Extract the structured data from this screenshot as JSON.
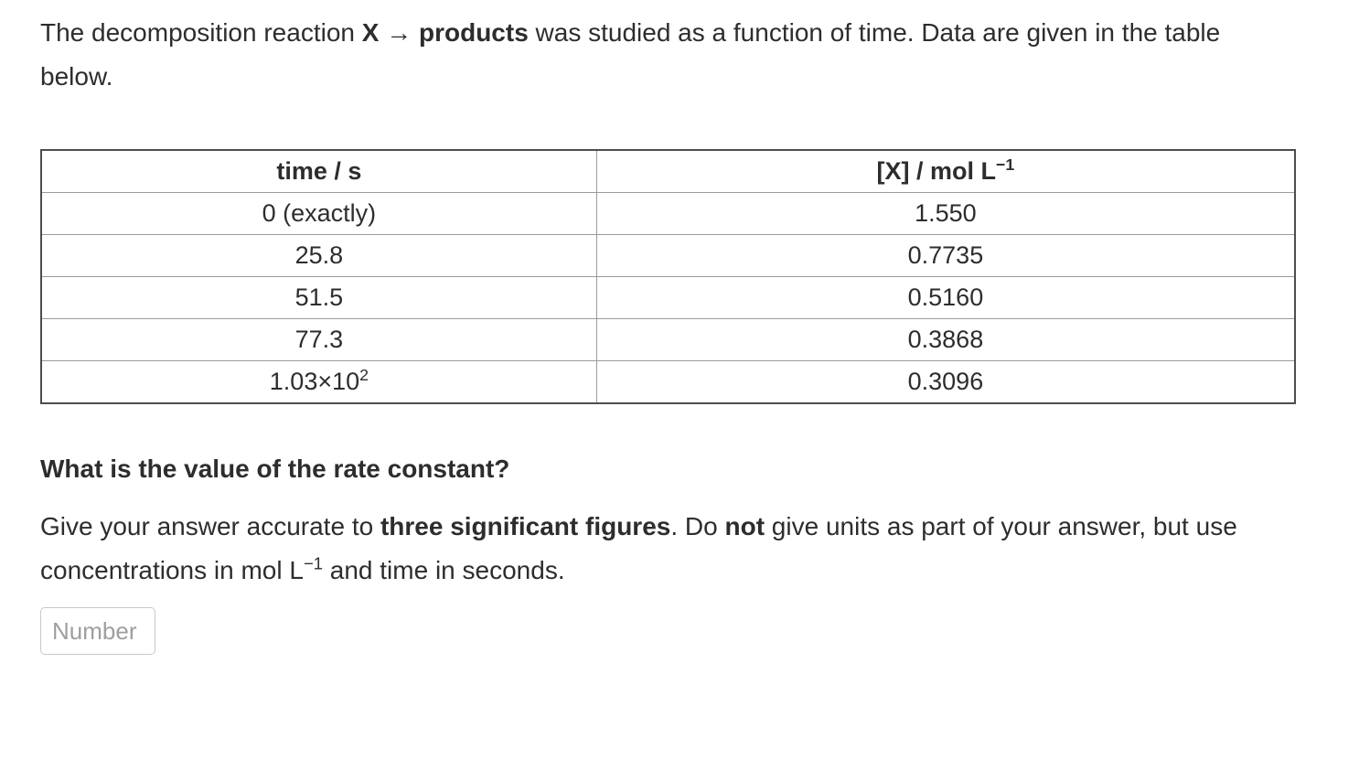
{
  "intro": {
    "part1": "The decomposition reaction ",
    "reaction_bold": "X → products",
    "part2": " was studied as a function of time. Data are given in the table below."
  },
  "table": {
    "headers": {
      "time": "time / s",
      "conc_base": "[X] / mol L",
      "conc_exp": "−1"
    },
    "rows": [
      {
        "time": "0 (exactly)",
        "conc": "1.550"
      },
      {
        "time": "25.8",
        "conc": "0.7735"
      },
      {
        "time": "51.5",
        "conc": "0.5160"
      },
      {
        "time": "77.3",
        "conc": "0.3868"
      },
      {
        "time_base": "1.03×10",
        "time_exp": "2",
        "conc": "0.3096"
      }
    ]
  },
  "question": {
    "heading": "What is the value of the rate constant?",
    "inst_part1": "Give your answer accurate to ",
    "inst_bold1": "three significant figures",
    "inst_part2": ". Do ",
    "inst_bold2": "not",
    "inst_part3": " give units as part of your answer, but use concentrations in mol L",
    "inst_exp": "−1",
    "inst_part4": " and time in seconds."
  },
  "input": {
    "placeholder": "Number"
  }
}
